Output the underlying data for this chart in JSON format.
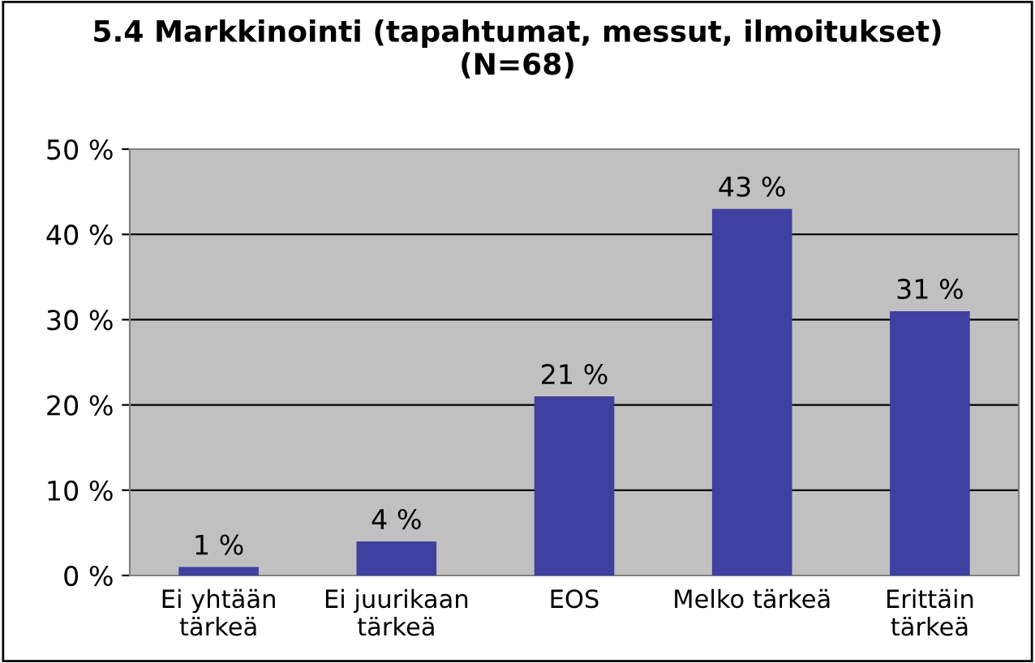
{
  "chart_data": {
    "type": "bar",
    "title": "5.4 Markkinointi (tapahtumat, messut, ilmoitukset)\n(N=68)",
    "categories": [
      "Ei yhtään\ntärkeä",
      "Ei juurikaan\ntärkeä",
      "EOS",
      "Melko tärkeä",
      "Erittäin\ntärkeä"
    ],
    "values": [
      1,
      4,
      21,
      43,
      31
    ],
    "color": "#4040a0",
    "value_labels": [
      "1 %",
      "4 %",
      "21 %",
      "43 %",
      "31 %"
    ],
    "ylim": [
      0,
      50
    ],
    "yticks": [
      {
        "value": 0,
        "label": "0 %"
      },
      {
        "value": 10,
        "label": "10 %"
      },
      {
        "value": 20,
        "label": "20 %"
      },
      {
        "value": 30,
        "label": "30 %"
      },
      {
        "value": 40,
        "label": "40 %"
      },
      {
        "value": 50,
        "label": "50 %"
      }
    ],
    "grid": "y",
    "legend": false
  }
}
